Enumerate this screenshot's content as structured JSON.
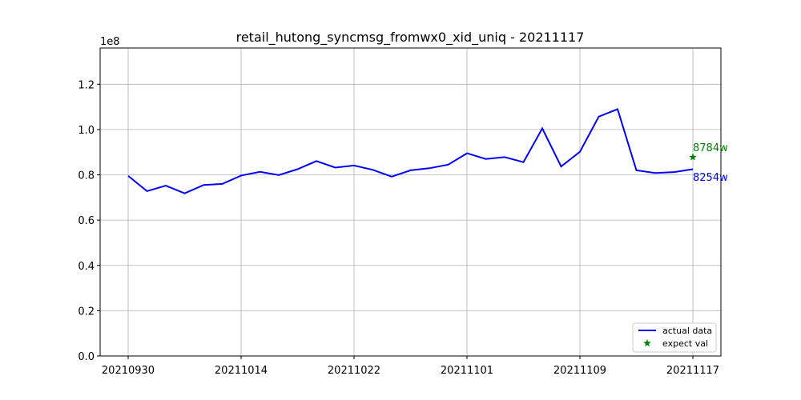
{
  "chart_data": {
    "type": "line",
    "title": "retail_hutong_syncmsg_fromwx0_xid_uniq - 20211117",
    "xlabel": "",
    "ylabel": "",
    "y_scale_label": "1e8",
    "grid": true,
    "legend_placement": "lower-right",
    "ylim": [
      0,
      1.36
    ],
    "y_ticks": [
      0.0,
      0.2,
      0.4,
      0.6,
      0.8,
      1.0,
      1.2
    ],
    "y_tick_labels": [
      "0.0",
      "0.2",
      "0.4",
      "0.6",
      "0.8",
      "1.0",
      "1.2"
    ],
    "x_ticks": [
      {
        "index": 0,
        "label": "20210930"
      },
      {
        "index": 6,
        "label": "20211014"
      },
      {
        "index": 12,
        "label": "20211022"
      },
      {
        "index": 18,
        "label": "20211101"
      },
      {
        "index": 24,
        "label": "20211109"
      },
      {
        "index": 30,
        "label": "20211117"
      }
    ],
    "series": [
      {
        "name": "actual data",
        "color": "#0000ff",
        "values": [
          0.795,
          0.728,
          0.752,
          0.718,
          0.755,
          0.76,
          0.797,
          0.813,
          0.799,
          0.825,
          0.861,
          0.832,
          0.841,
          0.822,
          0.792,
          0.82,
          0.829,
          0.845,
          0.895,
          0.87,
          0.878,
          0.856,
          1.005,
          0.837,
          0.902,
          1.057,
          1.09,
          0.82,
          0.808,
          0.812,
          0.825
        ]
      },
      {
        "name": "expect val",
        "color": "#008000",
        "marker": "star",
        "points": [
          {
            "index": 30,
            "value": 0.878
          }
        ]
      }
    ],
    "annotations": [
      {
        "text": "8784w",
        "color": "#008000"
      },
      {
        "text": "8254w",
        "color": "#0000ff"
      }
    ]
  }
}
